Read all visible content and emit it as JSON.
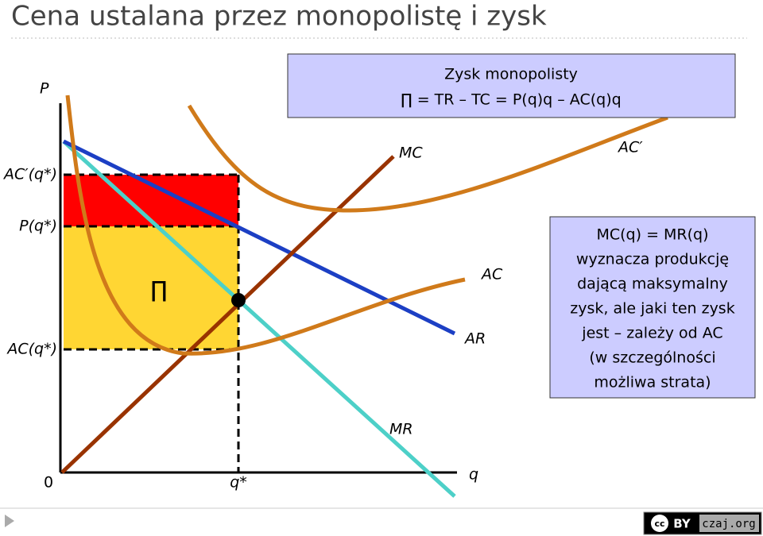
{
  "title": "Cena ustalana przez monopolistę i zysk",
  "formula_box": {
    "lines": [
      "Zysk monopolisty",
      "∏ = TR – TC = P(q)q – AC(q)q"
    ]
  },
  "axis_labels": {
    "y": "P",
    "x": "q",
    "origin": "0",
    "q_star": "q*",
    "ac_prime_q_star": "AC′(q*)",
    "p_q_star": "P(q*)",
    "ac_q_star": "AC(q*)"
  },
  "curve_labels": {
    "mc": "MC",
    "ac_prime": "AC′",
    "ac": "AC",
    "ar": "AR",
    "mr": "MR",
    "profit": "∏"
  },
  "info_box": {
    "lines": [
      "MC(q) = MR(q)",
      "wyznacza produkcję",
      "dającą maksymalny",
      "zysk, ale jaki ten zysk",
      "jest – zależy od AC",
      "(w szczególności",
      "możliwa strata)"
    ]
  },
  "license": {
    "cc": "cc",
    "by": "BY",
    "site": "czaj.org"
  }
}
